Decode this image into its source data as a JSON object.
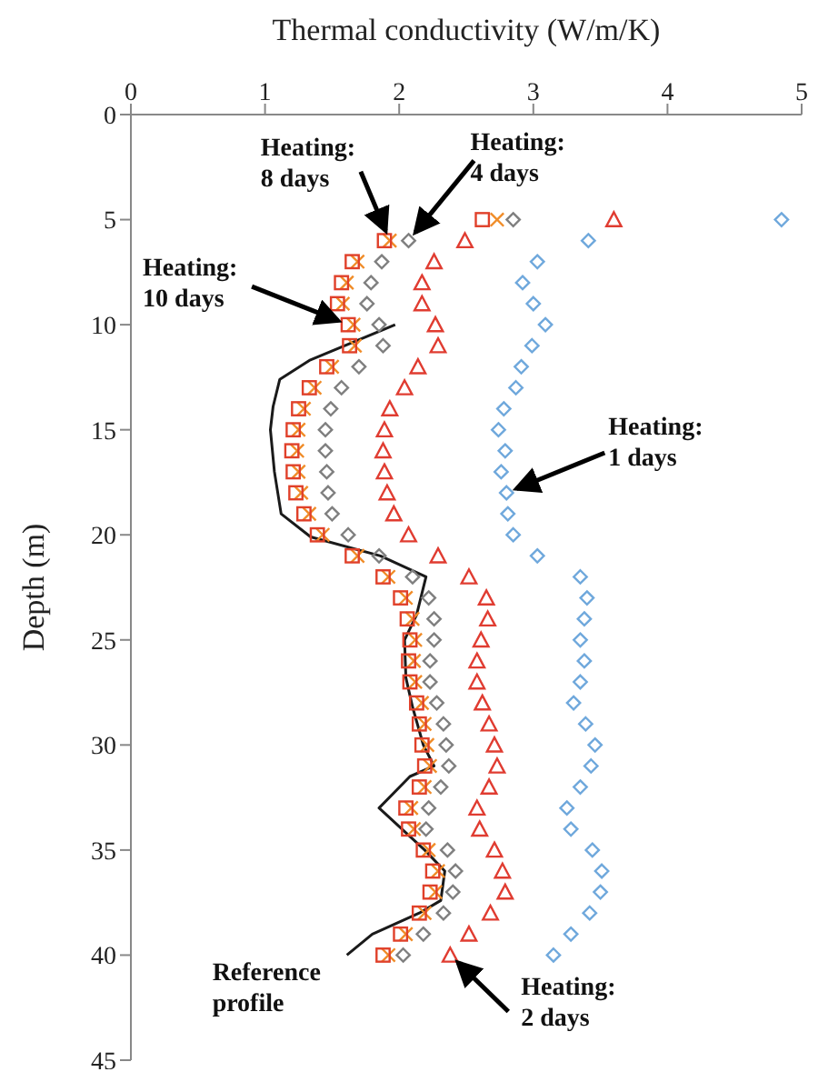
{
  "chart_data": {
    "type": "scatter",
    "xlabel": "Thermal conductivity (W/m/K)",
    "ylabel": "Depth (m)",
    "xlim": [
      0,
      5
    ],
    "xticks": [
      0,
      1,
      2,
      3,
      4,
      5
    ],
    "ylim": [
      45,
      0
    ],
    "yticks": [
      0,
      5,
      10,
      15,
      20,
      25,
      30,
      35,
      40,
      45
    ],
    "series": [
      {
        "marker": "diamond",
        "color": "#6fa8dc",
        "x": [
          4.85,
          3.41,
          3.03,
          2.92,
          3.0,
          3.09,
          2.99,
          2.91,
          2.87,
          2.78,
          2.74,
          2.79,
          2.76,
          2.8,
          2.81,
          2.85,
          3.03,
          3.35,
          3.4,
          3.38,
          3.35,
          3.38,
          3.35,
          3.3,
          3.39,
          3.46,
          3.43,
          3.35,
          3.25,
          3.28,
          3.44,
          3.51,
          3.5,
          3.42,
          3.28,
          3.15
        ],
        "values": [
          5,
          6,
          7,
          8,
          9,
          10,
          11,
          12,
          13,
          14,
          15,
          16,
          17,
          18,
          19,
          20,
          21,
          22,
          23,
          24,
          25,
          26,
          27,
          28,
          29,
          30,
          31,
          32,
          33,
          34,
          35,
          36,
          37,
          38,
          39,
          40
        ]
      },
      {
        "marker": "triangle",
        "color": "#e03c31",
        "x": [
          3.6,
          2.49,
          2.26,
          2.17,
          2.17,
          2.27,
          2.29,
          2.14,
          2.04,
          1.93,
          1.89,
          1.88,
          1.89,
          1.91,
          1.96,
          2.07,
          2.29,
          2.52,
          2.65,
          2.66,
          2.61,
          2.58,
          2.58,
          2.62,
          2.67,
          2.71,
          2.73,
          2.67,
          2.58,
          2.6,
          2.71,
          2.77,
          2.79,
          2.68,
          2.52,
          2.38
        ],
        "values": [
          5,
          6,
          7,
          8,
          9,
          10,
          11,
          12,
          13,
          14,
          15,
          16,
          17,
          18,
          19,
          20,
          21,
          22,
          23,
          24,
          25,
          26,
          27,
          28,
          29,
          30,
          31,
          32,
          33,
          34,
          35,
          36,
          37,
          38,
          39,
          40
        ]
      },
      {
        "marker": "diamond",
        "color": "#7f7f7f",
        "x": [
          2.85,
          2.07,
          1.87,
          1.79,
          1.76,
          1.85,
          1.88,
          1.7,
          1.57,
          1.49,
          1.45,
          1.45,
          1.46,
          1.47,
          1.5,
          1.62,
          1.85,
          2.1,
          2.22,
          2.26,
          2.26,
          2.23,
          2.23,
          2.28,
          2.33,
          2.35,
          2.37,
          2.31,
          2.22,
          2.2,
          2.36,
          2.42,
          2.4,
          2.33,
          2.18,
          2.03
        ],
        "values": [
          5,
          6,
          7,
          8,
          9,
          10,
          11,
          12,
          13,
          14,
          15,
          16,
          17,
          18,
          19,
          20,
          21,
          22,
          23,
          24,
          25,
          26,
          27,
          28,
          29,
          30,
          31,
          32,
          33,
          34,
          35,
          36,
          37,
          38,
          39,
          40
        ]
      },
      {
        "marker": "cross",
        "color": "#f08c28",
        "x": [
          2.73,
          1.93,
          1.69,
          1.61,
          1.58,
          1.66,
          1.67,
          1.5,
          1.37,
          1.29,
          1.25,
          1.24,
          1.25,
          1.27,
          1.33,
          1.43,
          1.69,
          1.92,
          2.05,
          2.1,
          2.12,
          2.11,
          2.12,
          2.17,
          2.19,
          2.21,
          2.23,
          2.19,
          2.09,
          2.11,
          2.22,
          2.29,
          2.27,
          2.19,
          2.05,
          1.92
        ],
        "values": [
          5,
          6,
          7,
          8,
          9,
          10,
          11,
          12,
          13,
          14,
          15,
          16,
          17,
          18,
          19,
          20,
          21,
          22,
          23,
          24,
          25,
          26,
          27,
          28,
          29,
          30,
          31,
          32,
          33,
          34,
          35,
          36,
          37,
          38,
          39,
          40
        ]
      },
      {
        "marker": "square",
        "color": "#e0402a",
        "x": [
          2.62,
          1.89,
          1.65,
          1.57,
          1.54,
          1.62,
          1.63,
          1.46,
          1.33,
          1.25,
          1.21,
          1.2,
          1.21,
          1.23,
          1.29,
          1.39,
          1.65,
          1.88,
          2.01,
          2.06,
          2.08,
          2.07,
          2.08,
          2.13,
          2.15,
          2.17,
          2.19,
          2.15,
          2.05,
          2.07,
          2.18,
          2.25,
          2.23,
          2.15,
          2.01,
          1.88
        ],
        "values": [
          5,
          6,
          7,
          8,
          9,
          10,
          11,
          12,
          13,
          14,
          15,
          16,
          17,
          18,
          19,
          20,
          21,
          22,
          23,
          24,
          25,
          26,
          27,
          28,
          29,
          30,
          31,
          32,
          33,
          34,
          35,
          36,
          37,
          38,
          39,
          40
        ]
      },
      {
        "type": "line",
        "marker": "none",
        "line_style": "solid",
        "color": "#1a1a1a",
        "x": [
          1.97,
          1.33,
          1.11,
          1.06,
          1.04,
          1.07,
          1.12,
          1.34,
          1.86,
          2.2,
          2.13,
          2.04,
          2.05,
          2.1,
          2.18,
          2.26,
          2.08,
          1.85,
          2.19,
          2.34,
          2.31,
          2.15,
          1.8,
          1.61
        ],
        "values": [
          10,
          11.7,
          12.6,
          13.9,
          15,
          17,
          19,
          20.1,
          21,
          22,
          23.8,
          25,
          26.8,
          28.2,
          30,
          31,
          31.5,
          33,
          35,
          36,
          37.4,
          38,
          39,
          40
        ]
      }
    ],
    "annotations": [
      {
        "text": "Heating:\n8 days",
        "x": 1.93,
        "y": 6
      },
      {
        "text": "Heating:\n4 days",
        "x": 2.07,
        "y": 6
      },
      {
        "text": "Heating:\n10 days",
        "x": 1.62,
        "y": 10
      },
      {
        "text": "Heating:\n1 days",
        "x": 2.8,
        "y": 18
      },
      {
        "text": "Heating:\n2 days",
        "x": 2.38,
        "y": 40
      },
      {
        "text": "Reference\nprofile",
        "x": 1.61,
        "y": 40
      }
    ]
  }
}
